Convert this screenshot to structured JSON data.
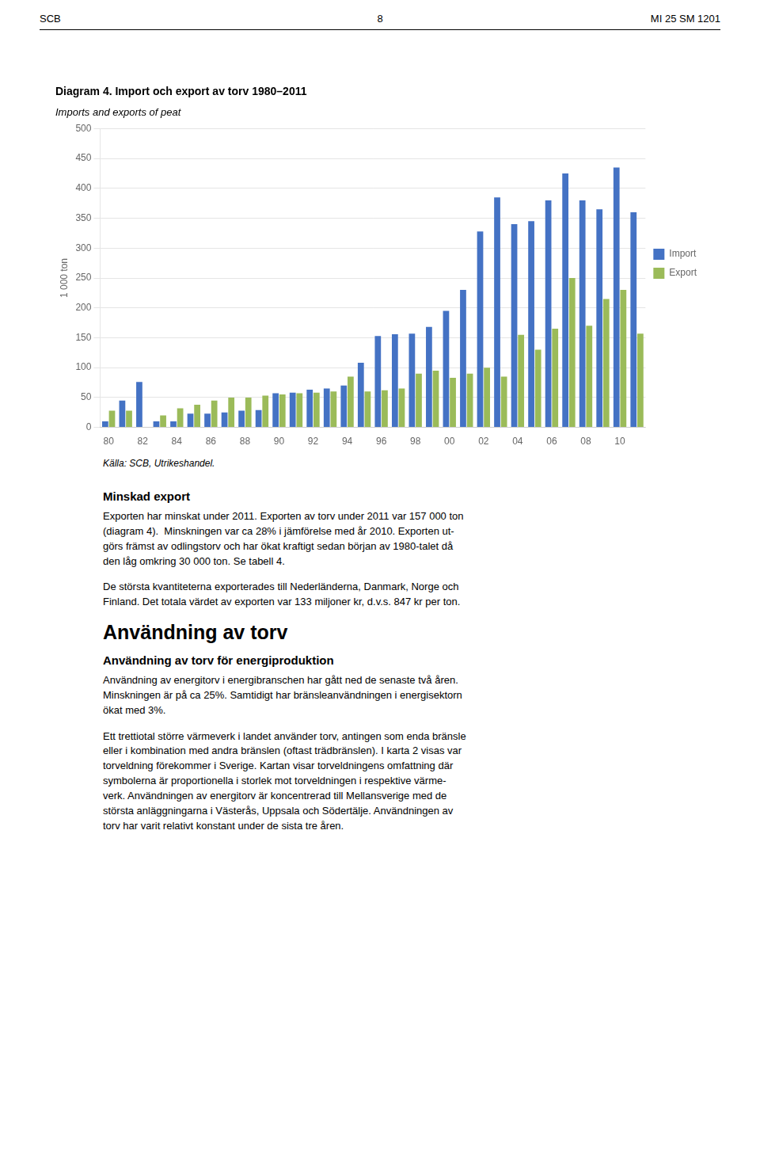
{
  "chart_data": {
    "type": "bar",
    "title": "Diagram 4. Import och export av torv 1980–2011",
    "subtitle": "Imports and exports of peat",
    "y_label": "1 000 ton",
    "categories": [
      "80",
      null,
      "82",
      null,
      "84",
      null,
      "86",
      null,
      "88",
      null,
      "90",
      null,
      "92",
      null,
      "94",
      null,
      "96",
      null,
      "98",
      null,
      "00",
      null,
      "02",
      null,
      "04",
      null,
      "06",
      null,
      "08",
      null,
      "10",
      null
    ],
    "series": [
      {
        "name": "Import",
        "color": "#4472C4",
        "values": [
          10,
          45,
          76,
          10,
          10,
          23,
          23,
          25,
          28,
          29,
          57,
          58,
          63,
          65,
          70,
          108,
          153,
          156,
          157,
          168,
          195,
          230,
          328,
          385,
          340,
          345,
          380,
          425,
          380,
          365,
          435,
          360
        ]
      },
      {
        "name": "Export",
        "color": "#9BBB59",
        "values": [
          28,
          28,
          0,
          20,
          32,
          38,
          45,
          50,
          50,
          53,
          55,
          57,
          58,
          60,
          85,
          60,
          62,
          65,
          90,
          95,
          83,
          90,
          100,
          85,
          155,
          130,
          165,
          250,
          170,
          215,
          230,
          157
        ]
      }
    ],
    "ylim": [
      0,
      500
    ],
    "yticks": [
      0,
      50,
      100,
      150,
      200,
      250,
      300,
      350,
      400,
      450,
      500
    ],
    "grid": true,
    "legend": "right",
    "annotations": [
      "SCB",
      "8",
      "MI 25 SM 1201",
      "Källa: SCB, Utrikeshandel.",
      "Minskad export",
      "Exporten har minskat under 2011. Exporten av torv under 2011 var 157 000 ton\n(diagram 4).  Minskningen var ca 28% i jämförelse med år 2010. Exporten ut-\ngörs främst av odlingstorv och har ökat kraftigt sedan början av 1980-talet då\nden låg omkring 30 000 ton. Se tabell 4.",
      "De största kvantiteterna exporterades till Nederländerna, Danmark, Norge och\nFinland. Det totala värdet av exporten var 133 miljoner kr, d.v.s. 847 kr per ton.",
      "Användning av torv",
      "Användning av torv för energiproduktion",
      "Användning av energitorv i energibranschen har gått ned de senaste två åren.\nMinskningen är på ca 25%. Samtidigt har bränsleanvändningen i energisektorn\nökat med 3%.",
      "Ett trettiotal större värmeverk i landet använder torv, antingen som enda bränsle\neller i kombination med andra bränslen (oftast trädbränslen). I karta 2 visas var\ntorveldning förekommer i Sverige. Kartan visar torveldningens omfattning där\nsymbolerna är proportionella i storlek mot torveldningen i respektive värme-\nverk. Användningen av energitorv är koncentrerad till Mellansverige med de\nstörsta anläggningarna i Västerås, Uppsala och Södertälje. Användningen av\ntorv har varit relativt konstant under de sista tre åren."
    ]
  }
}
